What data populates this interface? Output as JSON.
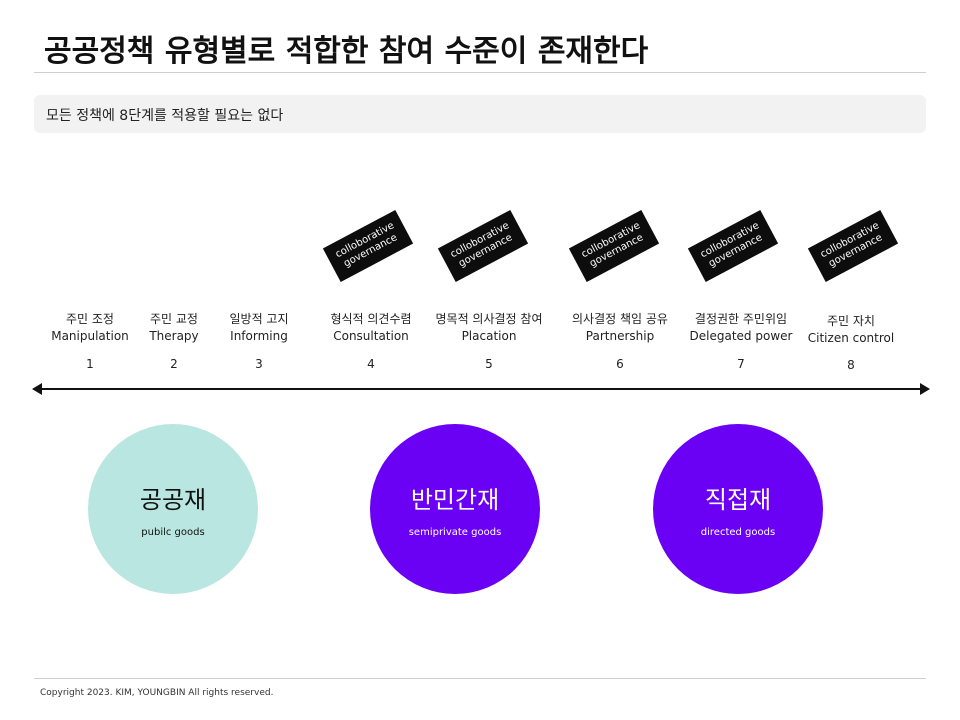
{
  "title": "공공정책 유형별로 적합한 참여 수준이 존재한다",
  "subtitle": "모든 정책에 8단계를 적용할 필요는 없다",
  "tag": {
    "line1": "colloborative",
    "line2": "governance"
  },
  "steps": [
    {
      "kr": "주민 조정",
      "en": "Manipulation",
      "num": "1"
    },
    {
      "kr": "주민 교정",
      "en": "Therapy",
      "num": "2"
    },
    {
      "kr": "일방적 고지",
      "en": "Informing",
      "num": "3"
    },
    {
      "kr": "형식적 의견수렴",
      "en": "Consultation",
      "num": "4"
    },
    {
      "kr": "명목적 의사결정 참여",
      "en": "Placation",
      "num": "5"
    },
    {
      "kr": "의사결정 책임 공유",
      "en": "Partnership",
      "num": "6"
    },
    {
      "kr": "결정권한 주민위임",
      "en": "Delegated power",
      "num": "7"
    },
    {
      "kr": "주민 자치",
      "en": "Citizen control",
      "num": "8"
    }
  ],
  "goods": [
    {
      "kr": "공공재",
      "en": "pubilc goods",
      "color": "#b9e6e1",
      "text_color": "#111111"
    },
    {
      "kr": "반민간재",
      "en": "semiprivate goods",
      "color": "#6a00f4",
      "text_color": "#ffffff"
    },
    {
      "kr": "직접재",
      "en": "directed goods",
      "color": "#6a00f4",
      "text_color": "#ffffff"
    }
  ],
  "copyright": "Copyright 2023. KIM, YOUNGBIN All rights reserved."
}
